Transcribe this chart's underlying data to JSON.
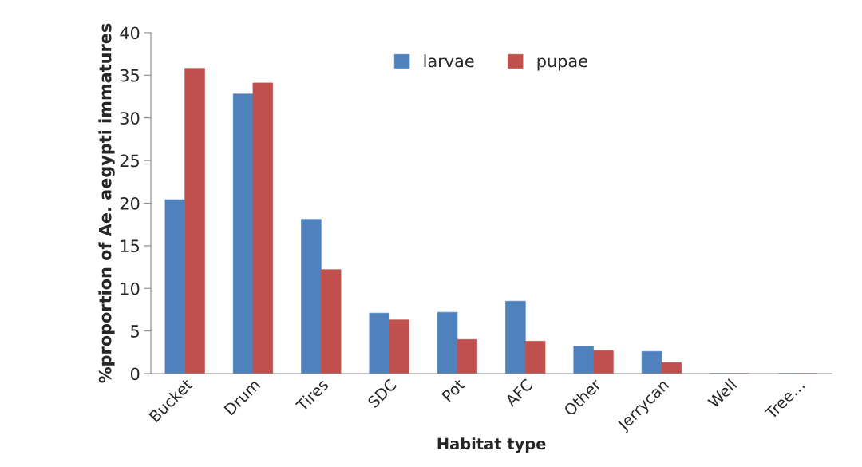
{
  "chart_data": {
    "type": "bar",
    "xlabel": "Habitat type",
    "ylabel": "%proportion of Ae. aegypti immatures",
    "categories": [
      "Bucket",
      "Drum",
      "Tires",
      "SDC",
      "Pot",
      "AFC",
      "Other",
      "Jerrycan",
      "Well",
      "Tree…"
    ],
    "series": [
      {
        "name": "larvae",
        "color": "#4f81bd",
        "values": [
          20.4,
          32.8,
          18.1,
          7.1,
          7.2,
          8.5,
          3.2,
          2.6,
          0,
          0
        ]
      },
      {
        "name": "pupae",
        "color": "#c0504d",
        "values": [
          35.8,
          34.1,
          12.2,
          6.3,
          4.0,
          3.8,
          2.7,
          1.3,
          0,
          0
        ]
      }
    ],
    "ylim": [
      0,
      40
    ],
    "yticks": [
      0,
      5,
      10,
      15,
      20,
      25,
      30,
      35,
      40
    ],
    "grid": false,
    "legend": "top"
  }
}
